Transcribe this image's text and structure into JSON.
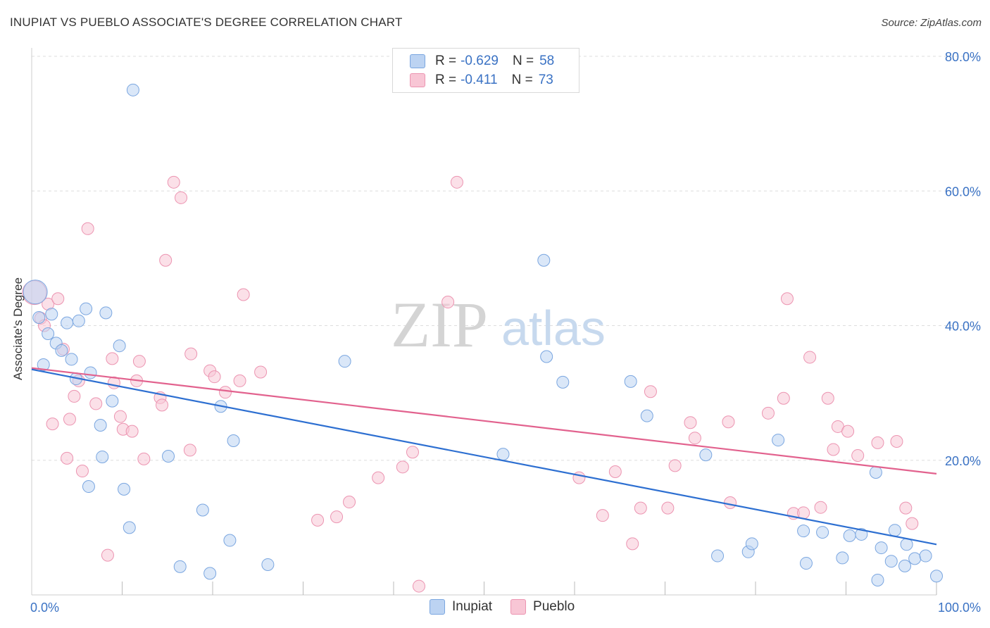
{
  "title": "INUPIAT VS PUEBLO ASSOCIATE'S DEGREE CORRELATION CHART",
  "source": "Source: ZipAtlas.com",
  "watermark": {
    "zip": "ZIP",
    "atlas": "atlas"
  },
  "legend": {
    "rows": [
      {
        "r_label": "R =",
        "r_value": "-0.629",
        "n_label": "N =",
        "n_value": "58"
      },
      {
        "r_label": "R =",
        "r_value": "-0.411",
        "n_label": "N =",
        "n_value": "73"
      }
    ],
    "series_names": [
      "Inupiat",
      "Pueblo"
    ]
  },
  "colors": {
    "inupiat_fill": "#bcd3f2",
    "inupiat_stroke": "#7aa6e0",
    "inupiat_line": "#2d6fd1",
    "pueblo_fill": "#f8c6d5",
    "pueblo_stroke": "#ec94b1",
    "pueblo_line": "#e2628e",
    "tick_label": "#3a72c4",
    "grid": "#dddddd"
  },
  "chart_data": {
    "type": "scatter",
    "title": "INUPIAT VS PUEBLO ASSOCIATE'S DEGREE CORRELATION CHART",
    "xlabel": "",
    "ylabel": "Associate's Degree",
    "xlim": [
      0,
      100
    ],
    "ylim": [
      0,
      80
    ],
    "x_tick_labels": [
      "0.0%",
      "100.0%"
    ],
    "y_ticks": [
      20,
      40,
      60,
      80
    ],
    "y_tick_labels": [
      "20.0%",
      "40.0%",
      "60.0%",
      "80.0%"
    ],
    "series": [
      {
        "name": "Inupiat",
        "R": -0.629,
        "N": 58,
        "trend": {
          "x": [
            0,
            100
          ],
          "y": [
            33.5,
            7.5
          ]
        },
        "points": [
          [
            0.4,
            45.0
          ],
          [
            0.8,
            41.2
          ],
          [
            1.3,
            34.2
          ],
          [
            1.8,
            38.8
          ],
          [
            2.2,
            41.7
          ],
          [
            2.7,
            37.4
          ],
          [
            3.3,
            36.3
          ],
          [
            3.9,
            40.4
          ],
          [
            4.4,
            35.0
          ],
          [
            5.2,
            40.7
          ],
          [
            4.9,
            32.1
          ],
          [
            6.0,
            42.5
          ],
          [
            6.5,
            33.0
          ],
          [
            6.3,
            16.1
          ],
          [
            7.6,
            25.2
          ],
          [
            7.8,
            20.5
          ],
          [
            8.2,
            41.9
          ],
          [
            8.9,
            28.8
          ],
          [
            9.7,
            37.0
          ],
          [
            10.2,
            15.7
          ],
          [
            10.8,
            10.0
          ],
          [
            11.2,
            75.0
          ],
          [
            15.1,
            20.6
          ],
          [
            16.4,
            4.2
          ],
          [
            18.9,
            12.6
          ],
          [
            19.7,
            3.2
          ],
          [
            20.9,
            28.0
          ],
          [
            21.9,
            8.1
          ],
          [
            22.3,
            22.9
          ],
          [
            26.1,
            4.5
          ],
          [
            34.6,
            34.7
          ],
          [
            52.1,
            20.9
          ],
          [
            56.6,
            49.7
          ],
          [
            56.9,
            35.4
          ],
          [
            58.7,
            31.6
          ],
          [
            66.2,
            31.7
          ],
          [
            68.0,
            26.6
          ],
          [
            74.5,
            20.8
          ],
          [
            75.8,
            5.8
          ],
          [
            79.2,
            6.4
          ],
          [
            79.6,
            7.6
          ],
          [
            82.5,
            23.0
          ],
          [
            85.3,
            9.5
          ],
          [
            85.6,
            4.7
          ],
          [
            87.4,
            9.3
          ],
          [
            89.6,
            5.5
          ],
          [
            90.4,
            8.8
          ],
          [
            91.7,
            9.0
          ],
          [
            93.3,
            18.2
          ],
          [
            93.5,
            2.2
          ],
          [
            93.9,
            7.0
          ],
          [
            95.0,
            5.0
          ],
          [
            95.4,
            9.6
          ],
          [
            96.5,
            4.3
          ],
          [
            96.7,
            7.5
          ],
          [
            97.6,
            5.4
          ],
          [
            98.8,
            5.8
          ],
          [
            100.0,
            2.8
          ]
        ]
      },
      {
        "name": "Pueblo",
        "R": -0.411,
        "N": 73,
        "trend": {
          "x": [
            0,
            100
          ],
          "y": [
            33.7,
            18.0
          ]
        },
        "points": [
          [
            0.3,
            44.9
          ],
          [
            1.0,
            41.1
          ],
          [
            1.4,
            40.0
          ],
          [
            1.8,
            43.2
          ],
          [
            2.3,
            25.4
          ],
          [
            2.9,
            44.0
          ],
          [
            3.5,
            36.5
          ],
          [
            3.9,
            20.3
          ],
          [
            4.2,
            26.1
          ],
          [
            4.7,
            29.5
          ],
          [
            5.2,
            31.8
          ],
          [
            5.6,
            18.4
          ],
          [
            6.2,
            54.4
          ],
          [
            7.1,
            28.4
          ],
          [
            8.4,
            5.9
          ],
          [
            8.9,
            35.1
          ],
          [
            9.1,
            31.5
          ],
          [
            9.8,
            26.5
          ],
          [
            10.1,
            24.6
          ],
          [
            11.1,
            24.3
          ],
          [
            11.6,
            31.8
          ],
          [
            11.9,
            34.7
          ],
          [
            12.4,
            20.2
          ],
          [
            14.2,
            29.3
          ],
          [
            14.4,
            28.2
          ],
          [
            14.8,
            49.7
          ],
          [
            15.7,
            61.3
          ],
          [
            16.5,
            59.0
          ],
          [
            17.5,
            21.5
          ],
          [
            17.6,
            35.8
          ],
          [
            19.7,
            33.3
          ],
          [
            20.2,
            32.4
          ],
          [
            21.4,
            30.1
          ],
          [
            23.0,
            31.8
          ],
          [
            23.4,
            44.6
          ],
          [
            25.3,
            33.1
          ],
          [
            31.6,
            11.1
          ],
          [
            33.7,
            11.6
          ],
          [
            35.1,
            13.8
          ],
          [
            38.3,
            17.4
          ],
          [
            41.0,
            19.0
          ],
          [
            42.1,
            21.2
          ],
          [
            42.8,
            1.3
          ],
          [
            46.0,
            43.5
          ],
          [
            47.0,
            61.3
          ],
          [
            60.5,
            17.4
          ],
          [
            63.1,
            11.8
          ],
          [
            64.5,
            18.3
          ],
          [
            66.4,
            7.6
          ],
          [
            67.3,
            12.9
          ],
          [
            68.4,
            30.2
          ],
          [
            70.3,
            12.9
          ],
          [
            71.1,
            19.2
          ],
          [
            72.8,
            25.6
          ],
          [
            73.3,
            23.3
          ],
          [
            77.2,
            13.7
          ],
          [
            77.0,
            25.7
          ],
          [
            81.4,
            27.0
          ],
          [
            83.1,
            29.2
          ],
          [
            83.5,
            44.0
          ],
          [
            84.2,
            12.1
          ],
          [
            85.3,
            12.2
          ],
          [
            86.0,
            35.3
          ],
          [
            87.2,
            13.0
          ],
          [
            88.0,
            29.2
          ],
          [
            88.6,
            21.6
          ],
          [
            89.1,
            25.0
          ],
          [
            90.2,
            24.3
          ],
          [
            91.3,
            20.7
          ],
          [
            93.5,
            22.6
          ],
          [
            95.6,
            22.8
          ],
          [
            96.6,
            12.9
          ],
          [
            97.3,
            10.6
          ]
        ]
      }
    ]
  }
}
